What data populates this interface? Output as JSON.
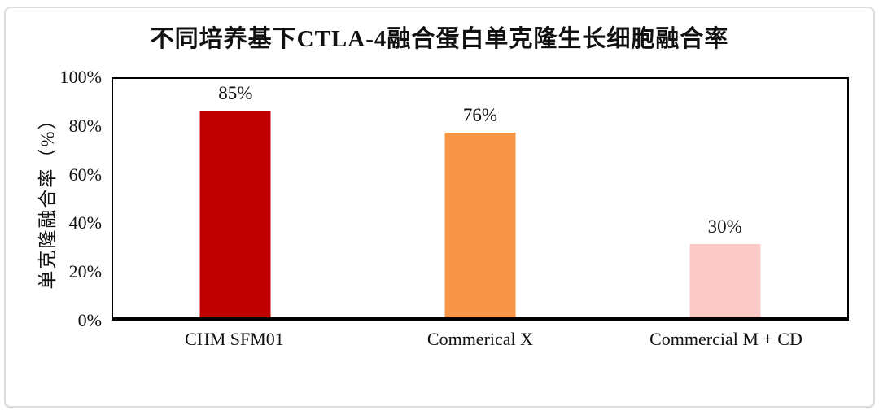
{
  "page": {
    "background_color": "#ffffff",
    "frame_border_color": "#dcdcdc",
    "axis_color": "#000000",
    "text_color": "#111111"
  },
  "chart_data": {
    "type": "bar",
    "title": "不同培养基下CTLA-4融合蛋白单克隆生长细胞融合率",
    "xlabel": "",
    "ylabel": "单克隆融合率（%）",
    "categories": [
      "CHM SFM01",
      "Commerical X",
      "Commercial M + CD"
    ],
    "values": [
      85,
      76,
      30
    ],
    "value_labels": [
      "85%",
      "76%",
      "30%"
    ],
    "bar_colors": [
      "#c00000",
      "#f79646",
      "#fbc9c6"
    ],
    "ylim": [
      0,
      100
    ],
    "yticks": [
      0,
      20,
      40,
      60,
      80,
      100
    ],
    "ytick_labels": [
      "0%",
      "20%",
      "40%",
      "60%",
      "80%",
      "100%"
    ],
    "grid": false,
    "legend_position": "none",
    "plot_border": true
  }
}
